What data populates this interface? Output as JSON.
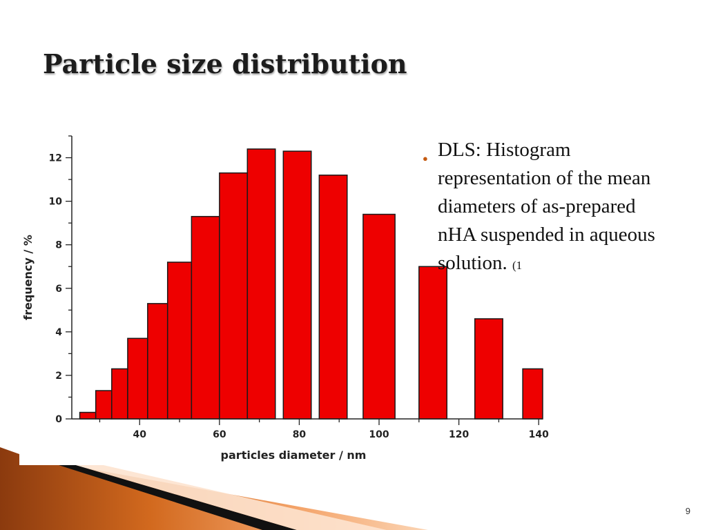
{
  "slide": {
    "title": "Particle size distribution",
    "bullet": {
      "text": "DLS: Histogram representation of the mean diameters of as-prepared nHA suspended in aqueous solution.",
      "ref": "(1"
    },
    "page_number": "9"
  },
  "colors": {
    "bar_fill": "#ee0000",
    "bar_edge": "#1a1a1a",
    "accent_orange": "#d2691e",
    "bullet": "#c55a11"
  },
  "chart_data": {
    "type": "bar",
    "title": "",
    "xlabel": "particles diameter / nm",
    "ylabel": "frequency / %",
    "xlim": [
      23,
      141
    ],
    "ylim": [
      0,
      13
    ],
    "xticks": [
      40,
      60,
      80,
      100,
      120,
      140
    ],
    "yticks": [
      0,
      2,
      4,
      6,
      8,
      10,
      12
    ],
    "grid": false,
    "bars": [
      {
        "x0": 25,
        "x1": 29,
        "value": 0.3
      },
      {
        "x0": 29,
        "x1": 33,
        "value": 1.3
      },
      {
        "x0": 33,
        "x1": 37,
        "value": 2.3
      },
      {
        "x0": 37,
        "x1": 42,
        "value": 3.7
      },
      {
        "x0": 42,
        "x1": 47,
        "value": 5.3
      },
      {
        "x0": 47,
        "x1": 53,
        "value": 7.2
      },
      {
        "x0": 53,
        "x1": 60,
        "value": 9.3
      },
      {
        "x0": 60,
        "x1": 67,
        "value": 11.3
      },
      {
        "x0": 67,
        "x1": 74,
        "value": 12.4
      },
      {
        "x0": 76,
        "x1": 83,
        "value": 12.3
      },
      {
        "x0": 85,
        "x1": 92,
        "value": 11.2
      },
      {
        "x0": 96,
        "x1": 104,
        "value": 9.4
      },
      {
        "x0": 110,
        "x1": 117,
        "value": 7.0
      },
      {
        "x0": 124,
        "x1": 131,
        "value": 4.6
      },
      {
        "x0": 136,
        "x1": 143,
        "value": 2.3
      }
    ]
  }
}
